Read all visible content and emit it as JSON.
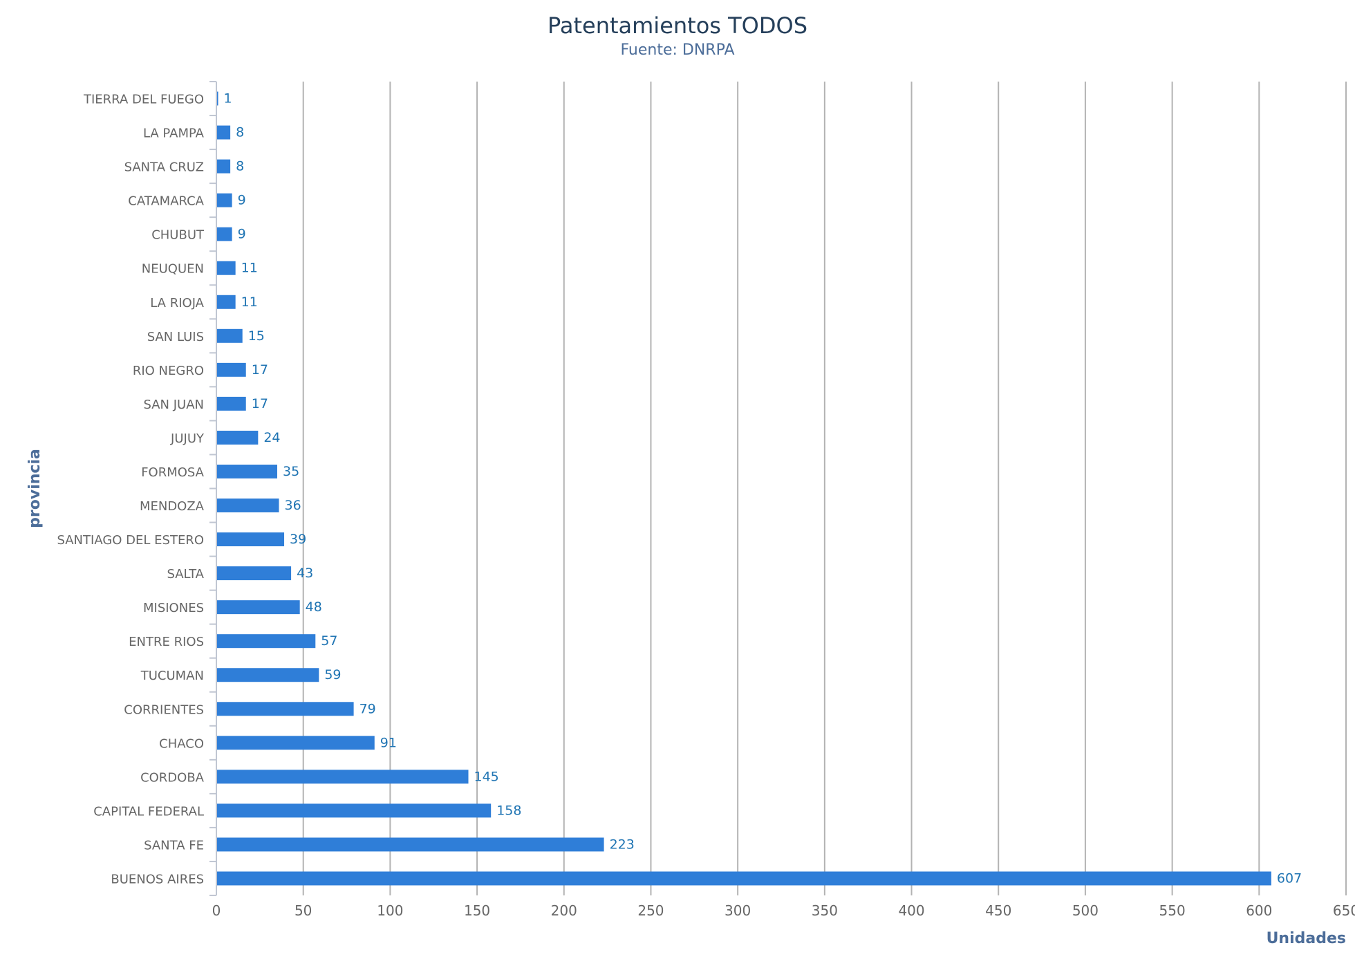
{
  "chart_data": {
    "type": "bar",
    "orientation": "horizontal",
    "title": "Patentamientos TODOS",
    "subtitle": "Fuente: DNRPA",
    "xlabel": "Unidades",
    "ylabel": "provincia",
    "xlim": [
      0,
      650
    ],
    "xticks": [
      0,
      50,
      100,
      150,
      200,
      250,
      300,
      350,
      400,
      450,
      500,
      550,
      600,
      650
    ],
    "grid": true,
    "legend": "none",
    "bar_color": "#2f7ed8",
    "categories": [
      "TIERRA DEL FUEGO",
      "LA PAMPA",
      "SANTA CRUZ",
      "CATAMARCA",
      "CHUBUT",
      "NEUQUEN",
      "LA RIOJA",
      "SAN LUIS",
      "RIO NEGRO",
      "SAN JUAN",
      "JUJUY",
      "FORMOSA",
      "MENDOZA",
      "SANTIAGO DEL ESTERO",
      "SALTA",
      "MISIONES",
      "ENTRE RIOS",
      "TUCUMAN",
      "CORRIENTES",
      "CHACO",
      "CORDOBA",
      "CAPITAL FEDERAL",
      "SANTA FE",
      "BUENOS AIRES"
    ],
    "values": [
      1,
      8,
      8,
      9,
      9,
      11,
      11,
      15,
      17,
      17,
      24,
      35,
      36,
      39,
      43,
      48,
      57,
      59,
      79,
      91,
      145,
      158,
      223,
      607
    ]
  }
}
